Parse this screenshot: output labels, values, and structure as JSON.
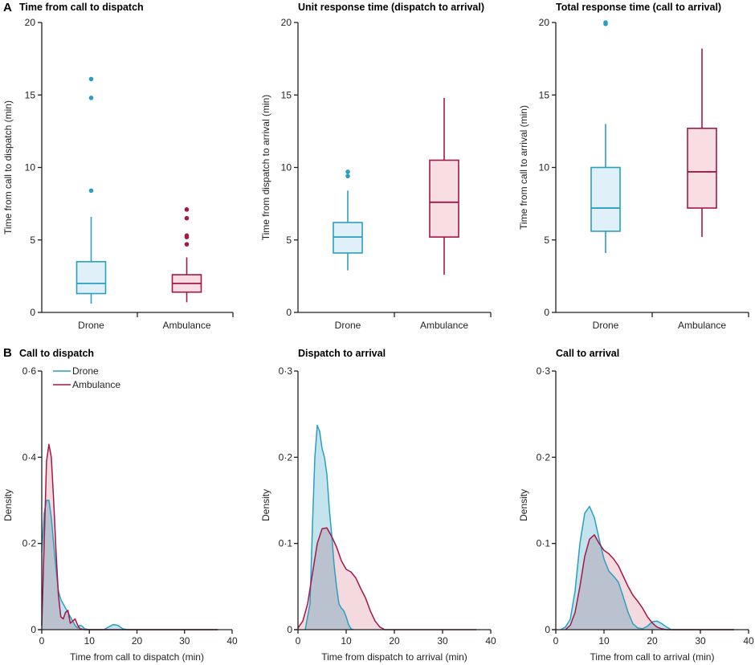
{
  "colors": {
    "drone": "#2a9fbf",
    "ambulance": "#a3174a",
    "drone_fill": "#dff0f8",
    "ambulance_fill": "#f8dde3",
    "overlap": "#c7c9cc"
  },
  "panel_letters": {
    "a": "A",
    "b": "B"
  },
  "legend": {
    "drone": "Drone",
    "ambulance": "Ambulance"
  },
  "chart_data": [
    {
      "type": "box",
      "title": "Time from call to dispatch",
      "ylabel": "Time from call to dispatch (min)",
      "ylim": [
        0,
        20
      ],
      "yticks": [
        "0",
        "5",
        "10",
        "15",
        "20"
      ],
      "categories": [
        "Drone",
        "Ambulance"
      ],
      "boxes": [
        {
          "name": "Drone",
          "whisker_low": 0.6,
          "q1": 1.3,
          "median": 2.0,
          "q3": 3.5,
          "whisker_high": 6.6,
          "outliers": [
            8.4,
            14.8,
            16.1
          ]
        },
        {
          "name": "Ambulance",
          "whisker_low": 0.7,
          "q1": 1.4,
          "median": 2.0,
          "q3": 2.6,
          "whisker_high": 3.8,
          "outliers": [
            4.7,
            5.2,
            5.3,
            6.5,
            7.1
          ]
        }
      ]
    },
    {
      "type": "box",
      "title": "Unit response time (dispatch to arrival)",
      "ylabel": "Time from dispatch to arrival (min)",
      "ylim": [
        0,
        20
      ],
      "yticks": [
        "0",
        "5",
        "10",
        "15",
        "20"
      ],
      "categories": [
        "Drone",
        "Ambulance"
      ],
      "boxes": [
        {
          "name": "Drone",
          "whisker_low": 2.9,
          "q1": 4.1,
          "median": 5.2,
          "q3": 6.2,
          "whisker_high": 8.4,
          "outliers": [
            9.4,
            9.7
          ]
        },
        {
          "name": "Ambulance",
          "whisker_low": 2.6,
          "q1": 5.2,
          "median": 7.6,
          "q3": 10.5,
          "whisker_high": 14.8,
          "outliers": []
        }
      ]
    },
    {
      "type": "box",
      "title": "Total response time (call to arrival)",
      "ylabel": "Time from call to arrival (min)",
      "ylim": [
        0,
        20
      ],
      "yticks": [
        "0",
        "5",
        "10",
        "15",
        "20"
      ],
      "categories": [
        "Drone",
        "Ambulance"
      ],
      "boxes": [
        {
          "name": "Drone",
          "whisker_low": 4.1,
          "q1": 5.6,
          "median": 7.2,
          "q3": 10.0,
          "whisker_high": 13.0,
          "outliers": [
            19.9,
            20.0
          ]
        },
        {
          "name": "Ambulance",
          "whisker_low": 5.2,
          "q1": 7.2,
          "median": 9.7,
          "q3": 12.7,
          "whisker_high": 18.2,
          "outliers": []
        }
      ]
    },
    {
      "type": "area",
      "title": "Call to dispatch",
      "xlabel": "Time from call to dispatch (min)",
      "ylabel": "Density",
      "xlim": [
        0,
        40
      ],
      "ylim": [
        0,
        0.6
      ],
      "xticks": [
        "0",
        "10",
        "20",
        "30",
        "40"
      ],
      "yticks": [
        "0",
        "0·2",
        "0·4",
        "0·6"
      ],
      "legend": "top-left",
      "series": [
        {
          "name": "Drone",
          "x": [
            0,
            0.5,
            1,
            1.5,
            2,
            2.5,
            3,
            3.5,
            4,
            5,
            6,
            7,
            7.5,
            8,
            8.5,
            9,
            10,
            13,
            14,
            15,
            16,
            17,
            18,
            37
          ],
          "y": [
            0.18,
            0.27,
            0.3,
            0.3,
            0.26,
            0.2,
            0.14,
            0.09,
            0.07,
            0.05,
            0.03,
            0.01,
            0.004,
            0.01,
            0.008,
            0.002,
            0,
            0,
            0.006,
            0.012,
            0.01,
            0.002,
            0,
            0
          ]
        },
        {
          "name": "Ambulance",
          "x": [
            0,
            0.5,
            1,
            1.5,
            2,
            2.5,
            3,
            3.5,
            4,
            4.5,
            5,
            5.5,
            6,
            6.5,
            7,
            7.5,
            8,
            9,
            37
          ],
          "y": [
            0.01,
            0.2,
            0.39,
            0.43,
            0.4,
            0.3,
            0.18,
            0.08,
            0.03,
            0.025,
            0.04,
            0.045,
            0.015,
            0.02,
            0.025,
            0.012,
            0.002,
            0,
            0
          ]
        }
      ]
    },
    {
      "type": "area",
      "title": "Dispatch to arrival",
      "xlabel": "Time from dispatch to arrival (min)",
      "ylabel": "Density",
      "xlim": [
        0,
        40
      ],
      "ylim": [
        0,
        0.3
      ],
      "xticks": [
        "0",
        "10",
        "20",
        "30",
        "40"
      ],
      "yticks": [
        "0",
        "0·1",
        "0·2",
        "0·3"
      ],
      "series": [
        {
          "name": "Drone",
          "x": [
            1.5,
            2.5,
            3,
            3.5,
            4,
            4.5,
            5,
            5.5,
            6,
            6.5,
            7,
            7.5,
            8,
            8.5,
            9,
            9.5,
            10,
            10.5,
            11,
            11.5
          ],
          "y": [
            0,
            0.03,
            0.12,
            0.2,
            0.237,
            0.23,
            0.21,
            0.2,
            0.18,
            0.14,
            0.11,
            0.075,
            0.05,
            0.03,
            0.025,
            0.022,
            0.015,
            0.006,
            0.001,
            0
          ]
        },
        {
          "name": "Ambulance",
          "x": [
            0,
            1,
            2,
            3,
            4,
            5,
            6,
            7,
            8,
            9,
            10,
            11,
            12,
            13,
            14,
            15,
            16,
            17,
            18,
            37
          ],
          "y": [
            0.002,
            0.01,
            0.03,
            0.065,
            0.1,
            0.117,
            0.118,
            0.108,
            0.096,
            0.08,
            0.07,
            0.067,
            0.06,
            0.048,
            0.037,
            0.022,
            0.01,
            0.003,
            0,
            0
          ]
        }
      ]
    },
    {
      "type": "area",
      "title": "Call to arrival",
      "xlabel": "Time from call to arrival (min)",
      "ylabel": "Density",
      "xlim": [
        0,
        40
      ],
      "ylim": [
        0,
        0.3
      ],
      "xticks": [
        "0",
        "10",
        "20",
        "30",
        "40"
      ],
      "yticks": [
        "0",
        "0·1",
        "0·2",
        "0·3"
      ],
      "series": [
        {
          "name": "Drone",
          "x": [
            1,
            2,
            3,
            4,
            5,
            6,
            7,
            8,
            9,
            10,
            11,
            12,
            13,
            14,
            15,
            16,
            17,
            18,
            19,
            20,
            21,
            22,
            23,
            24,
            37
          ],
          "y": [
            0,
            0.003,
            0.012,
            0.045,
            0.1,
            0.135,
            0.143,
            0.13,
            0.105,
            0.082,
            0.068,
            0.062,
            0.055,
            0.038,
            0.02,
            0.007,
            0.002,
            0.001,
            0.004,
            0.009,
            0.01,
            0.007,
            0.003,
            0,
            0
          ]
        },
        {
          "name": "Ambulance",
          "x": [
            2,
            3,
            4,
            5,
            6,
            7,
            8,
            9,
            10,
            11,
            12,
            13,
            14,
            15,
            16,
            17,
            18,
            19,
            20,
            21,
            22,
            23,
            24,
            37
          ],
          "y": [
            0,
            0.005,
            0.02,
            0.05,
            0.085,
            0.105,
            0.11,
            0.1,
            0.092,
            0.088,
            0.082,
            0.074,
            0.062,
            0.05,
            0.04,
            0.033,
            0.025,
            0.015,
            0.008,
            0.003,
            0.001,
            0,
            0,
            0
          ]
        }
      ]
    }
  ]
}
